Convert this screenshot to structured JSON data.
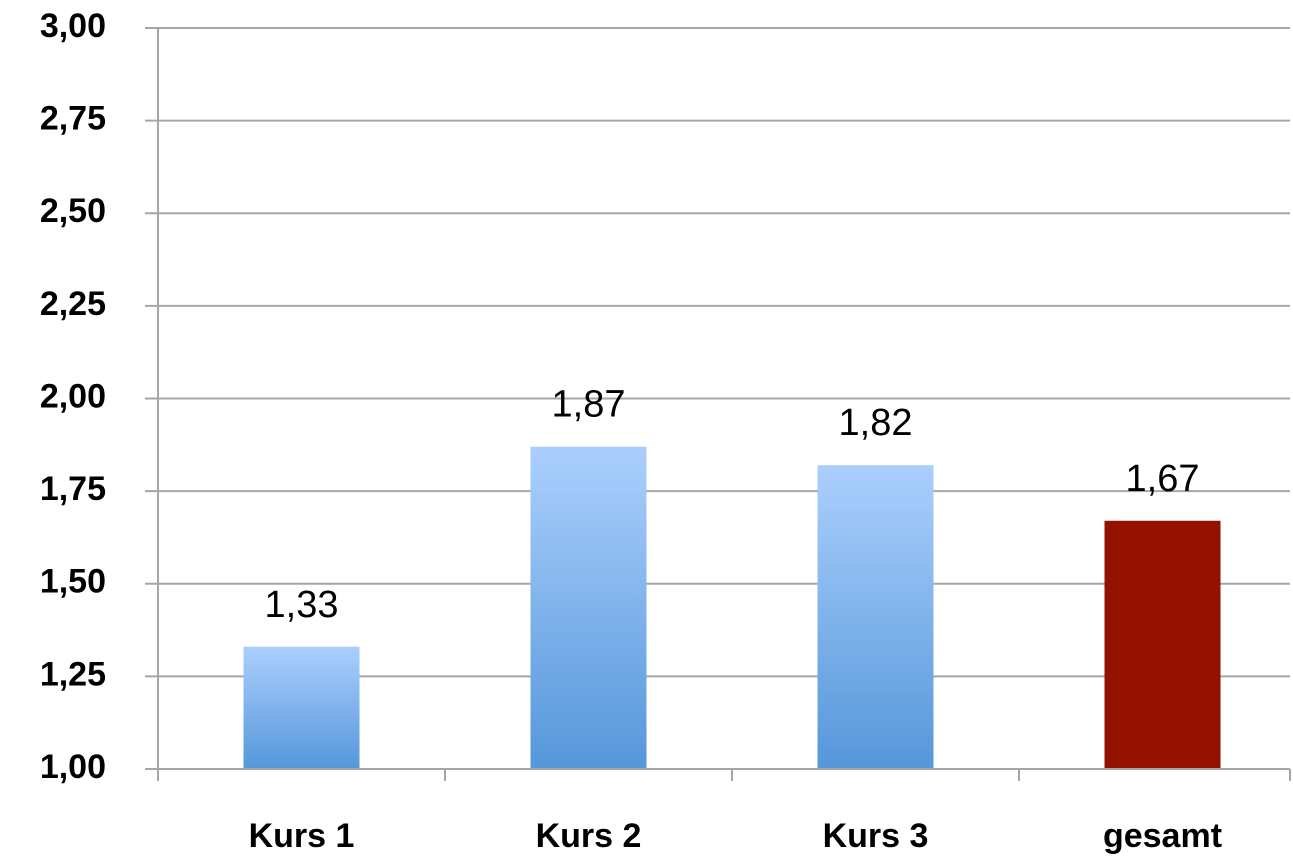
{
  "chart_data": {
    "type": "bar",
    "categories": [
      "Kurs 1",
      "Kurs 2",
      "Kurs 3",
      "gesamt"
    ],
    "values": [
      1.33,
      1.87,
      1.82,
      1.67
    ],
    "value_labels": [
      "1,33",
      "1,87",
      "1,82",
      "1,67"
    ],
    "colors": [
      [
        "#abcffd",
        "#5597da"
      ],
      [
        "#abcffd",
        "#5597da"
      ],
      [
        "#abcffd",
        "#5597da"
      ],
      [
        "#941100",
        "#941100"
      ]
    ],
    "ylim": [
      1,
      3
    ],
    "yticks": [
      {
        "value": 1,
        "label": "1,00"
      },
      {
        "value": 1.25,
        "label": "1,25"
      },
      {
        "value": 1.5,
        "label": "1,50"
      },
      {
        "value": 1.75,
        "label": "1,75"
      },
      {
        "value": 2,
        "label": "2,00"
      },
      {
        "value": 2.25,
        "label": "2,25"
      },
      {
        "value": 2.5,
        "label": "2,50"
      },
      {
        "value": 2.75,
        "label": "2,75"
      },
      {
        "value": 3,
        "label": "3,00"
      }
    ],
    "grid": true
  }
}
